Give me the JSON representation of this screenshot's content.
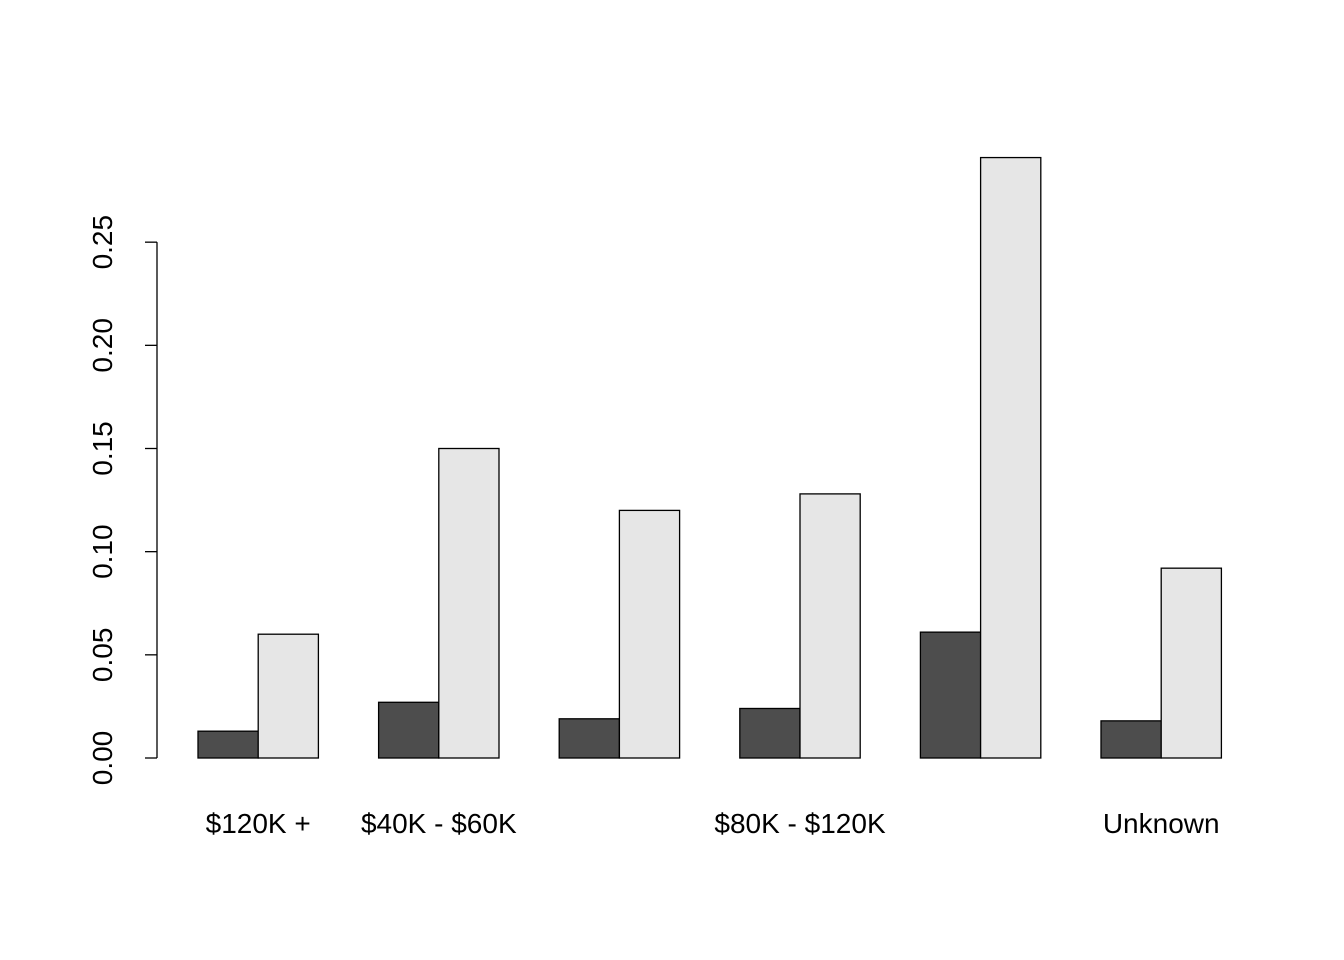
{
  "chart_data": {
    "type": "grouped-bar",
    "categories": [
      "$120K +",
      "$40K - $60K",
      null,
      "$80K - $120K",
      null,
      "Unknown"
    ],
    "series": [
      {
        "color": "#4d4d4d",
        "values": [
          0.013,
          0.027,
          0.019,
          0.024,
          0.061,
          0.018
        ]
      },
      {
        "color": "#e6e6e6",
        "values": [
          0.06,
          0.15,
          0.12,
          0.128,
          0.291,
          0.092
        ]
      }
    ],
    "ylim": [
      0,
      0.3
    ],
    "yticks": [
      {
        "value": 0,
        "label": "0.00"
      },
      {
        "value": 0.05,
        "label": "0.05"
      },
      {
        "value": 0.1,
        "label": "0.10"
      },
      {
        "value": 0.15,
        "label": "0.15"
      },
      {
        "value": 0.2,
        "label": "0.20"
      },
      {
        "value": 0.25,
        "label": "0.25"
      }
    ]
  }
}
